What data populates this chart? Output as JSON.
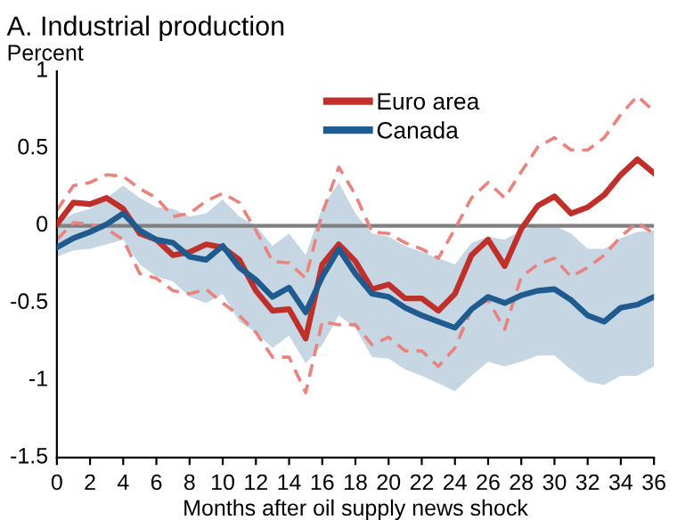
{
  "chart_data": {
    "type": "line",
    "title": "A. Industrial production",
    "ylabel": "Percent",
    "xlabel": "Months after oil supply news shock",
    "x": [
      0,
      1,
      2,
      3,
      4,
      5,
      6,
      7,
      8,
      9,
      10,
      11,
      12,
      13,
      14,
      15,
      16,
      17,
      18,
      19,
      20,
      21,
      22,
      23,
      24,
      25,
      26,
      27,
      28,
      29,
      30,
      31,
      32,
      33,
      34,
      35,
      36
    ],
    "series": [
      {
        "color": "#e8837d",
        "line_style": "dashed",
        "values": [
          0.1,
          0.26,
          0.28,
          0.33,
          0.32,
          0.24,
          0.18,
          0.06,
          0.08,
          0.16,
          0.21,
          0.15,
          -0.03,
          -0.23,
          -0.24,
          -0.34,
          0.08,
          0.38,
          0.2,
          -0.04,
          -0.05,
          -0.11,
          -0.15,
          -0.21,
          -0.02,
          0.18,
          0.28,
          0.18,
          0.35,
          0.51,
          0.57,
          0.49,
          0.49,
          0.57,
          0.72,
          0.84,
          0.74
        ]
      },
      {
        "color": "#e8837d",
        "line_style": "dashed",
        "values": [
          -0.09,
          0.02,
          0.01,
          -0.02,
          -0.09,
          -0.31,
          -0.34,
          -0.42,
          -0.44,
          -0.41,
          -0.5,
          -0.58,
          -0.69,
          -0.85,
          -0.85,
          -1.08,
          -0.62,
          -0.64,
          -0.64,
          -0.77,
          -0.72,
          -0.81,
          -0.81,
          -0.91,
          -0.79,
          -0.54,
          -0.48,
          -0.67,
          -0.33,
          -0.25,
          -0.21,
          -0.33,
          -0.27,
          -0.19,
          -0.07,
          0.02,
          -0.05
        ]
      },
      {
        "name": "Euro area",
        "color": "#c0302b",
        "line_style": "solid",
        "values": [
          0.01,
          0.15,
          0.14,
          0.18,
          0.11,
          -0.05,
          -0.09,
          -0.19,
          -0.17,
          -0.12,
          -0.14,
          -0.22,
          -0.42,
          -0.55,
          -0.54,
          -0.73,
          -0.25,
          -0.12,
          -0.23,
          -0.41,
          -0.38,
          -0.47,
          -0.47,
          -0.55,
          -0.44,
          -0.19,
          -0.09,
          -0.26,
          -0.02,
          0.13,
          0.19,
          0.08,
          0.12,
          0.2,
          0.33,
          0.43,
          0.34
        ]
      },
      {
        "name": "Canada",
        "color": "#1f5b8e",
        "line_style": "solid",
        "values": [
          -0.14,
          -0.08,
          -0.04,
          0.01,
          0.08,
          -0.03,
          -0.09,
          -0.11,
          -0.2,
          -0.22,
          -0.13,
          -0.27,
          -0.35,
          -0.46,
          -0.4,
          -0.56,
          -0.33,
          -0.15,
          -0.31,
          -0.44,
          -0.46,
          -0.53,
          -0.58,
          -0.62,
          -0.66,
          -0.54,
          -0.46,
          -0.5,
          -0.45,
          -0.42,
          -0.41,
          -0.48,
          -0.58,
          -0.62,
          -0.53,
          -0.51,
          -0.46
        ],
        "upper": [
          0.02,
          0.08,
          0.11,
          0.18,
          0.26,
          0.18,
          0.12,
          0.11,
          0.06,
          0.08,
          0.17,
          0.06,
          0.0,
          -0.13,
          -0.05,
          -0.19,
          0.12,
          0.28,
          0.08,
          -0.05,
          -0.07,
          -0.13,
          -0.17,
          -0.21,
          -0.25,
          -0.11,
          -0.07,
          -0.09,
          -0.03,
          0.0,
          0.0,
          -0.05,
          -0.15,
          -0.15,
          -0.08,
          -0.04,
          -0.03
        ],
        "lower": [
          -0.2,
          -0.16,
          -0.15,
          -0.12,
          -0.09,
          -0.25,
          -0.33,
          -0.36,
          -0.46,
          -0.5,
          -0.44,
          -0.62,
          -0.69,
          -0.79,
          -0.71,
          -0.89,
          -0.77,
          -0.58,
          -0.66,
          -0.85,
          -0.86,
          -0.93,
          -0.97,
          -1.02,
          -1.07,
          -0.97,
          -0.88,
          -0.91,
          -0.88,
          -0.84,
          -0.84,
          -0.93,
          -1.01,
          -1.03,
          -0.97,
          -0.97,
          -0.91
        ]
      }
    ],
    "xlim": [
      0,
      36
    ],
    "xticks": [
      0,
      2,
      4,
      6,
      8,
      10,
      12,
      14,
      16,
      18,
      20,
      22,
      24,
      26,
      28,
      30,
      32,
      34,
      36
    ],
    "ylim": [
      -1.5,
      1
    ],
    "yticks": [
      -1.5,
      -1,
      -0.5,
      0,
      0.5,
      1
    ],
    "ref_lines": [
      {
        "axis": "y",
        "value": 0,
        "color": "#808080"
      }
    ],
    "grid": false,
    "legend": "top",
    "marker": "none"
  }
}
